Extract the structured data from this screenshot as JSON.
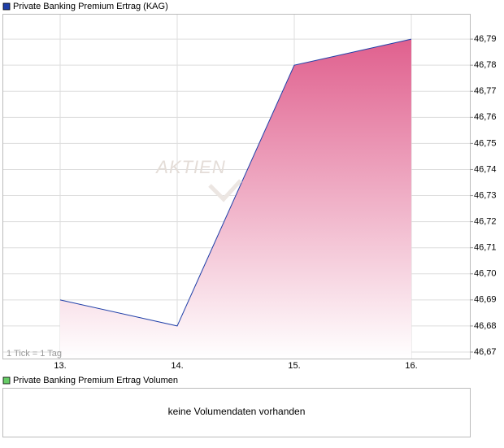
{
  "chart_data": {
    "type": "line",
    "categories": [
      "13.",
      "14.",
      "15.",
      "16."
    ],
    "series": [
      {
        "name": "Private Banking Premium Ertrag (KAG)",
        "color": "#1f3fa8",
        "fill": "#e0608e",
        "values": [
          46.69,
          46.68,
          46.78,
          46.79
        ]
      }
    ],
    "ylim": [
      46.6675,
      46.7997
    ],
    "yticks": [
      {
        "value": 46.67,
        "label": "46,67"
      },
      {
        "value": 46.68,
        "label": "46,68"
      },
      {
        "value": 46.69,
        "label": "46,69"
      },
      {
        "value": 46.7,
        "label": "46,70"
      },
      {
        "value": 46.71,
        "label": "46,71"
      },
      {
        "value": 46.72,
        "label": "46,72"
      },
      {
        "value": 46.73,
        "label": "46,73"
      },
      {
        "value": 46.74,
        "label": "46,74"
      },
      {
        "value": 46.75,
        "label": "46,75"
      },
      {
        "value": 46.76,
        "label": "46,76"
      },
      {
        "value": 46.77,
        "label": "46,77"
      },
      {
        "value": 46.78,
        "label": "46,78"
      },
      {
        "value": 46.79,
        "label": "46,79"
      }
    ],
    "grid": true,
    "watermark": "AKTIEN",
    "annotation": "1 Tick = 1 Tag"
  },
  "volume_panel": {
    "title": "Private Banking Premium Ertrag Volumen",
    "message": "keine Volumendaten vorhanden"
  }
}
